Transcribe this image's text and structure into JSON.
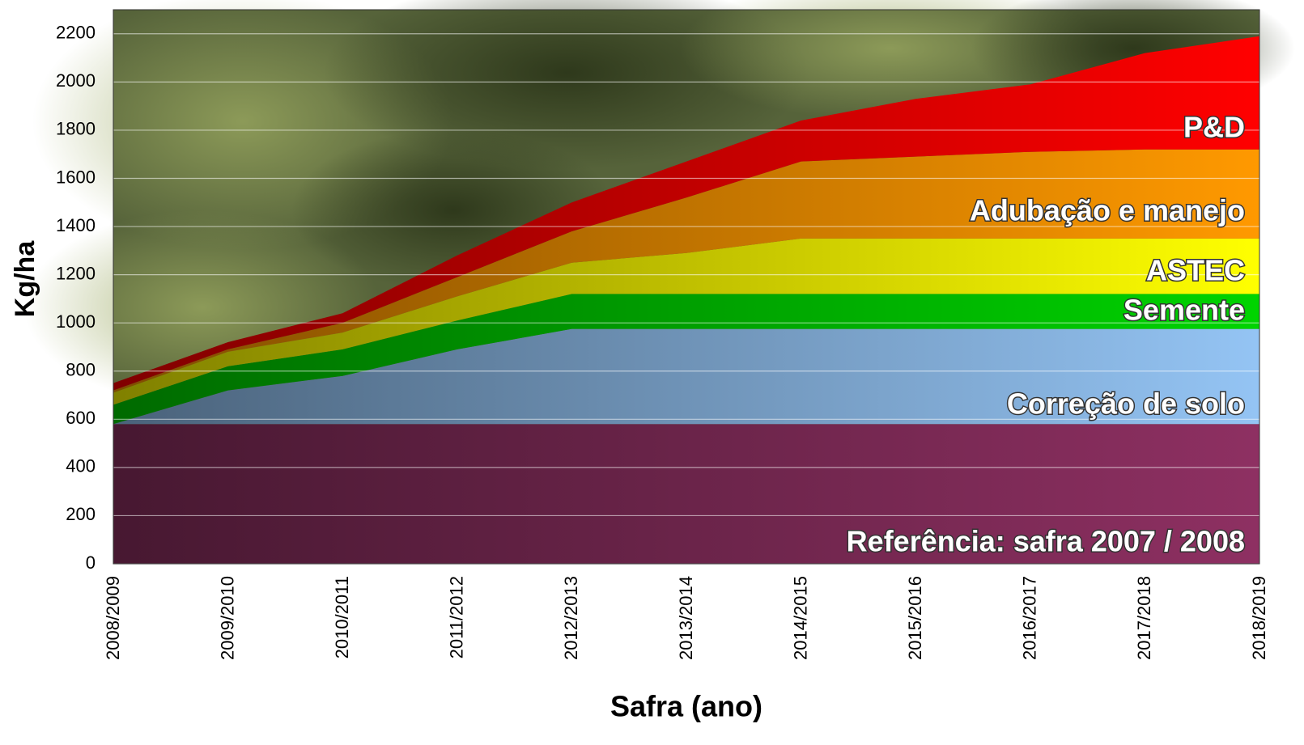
{
  "chart_data": {
    "type": "stacked-area",
    "x_label": "Safra (ano)",
    "y_label": "Kg/ha",
    "categories": [
      "2008/2009",
      "2009/2010",
      "2010/2011",
      "2011/2012",
      "2012/2013",
      "2013/2014",
      "2014/2015",
      "2015/2016",
      "2016/2017",
      "2017/2018",
      "2018/2019"
    ],
    "series": [
      {
        "name": "Referência: safra 2007 / 2008",
        "color": "#8e3062",
        "values": [
          580,
          580,
          580,
          580,
          580,
          580,
          580,
          580,
          580,
          580,
          580
        ]
      },
      {
        "name": "Correção de solo",
        "color": "#94c4f4",
        "values": [
          0,
          140,
          200,
          310,
          395,
          395,
          395,
          395,
          395,
          395,
          395
        ]
      },
      {
        "name": "Semente",
        "color": "#00d400",
        "values": [
          80,
          100,
          110,
          120,
          145,
          145,
          145,
          145,
          145,
          145,
          145
        ]
      },
      {
        "name": "ASTEC",
        "color": "#ffff00",
        "values": [
          50,
          60,
          70,
          100,
          130,
          170,
          230,
          230,
          230,
          230,
          230
        ]
      },
      {
        "name": "Adubação e manejo",
        "color": "#ff9900",
        "values": [
          10,
          10,
          40,
          80,
          130,
          230,
          320,
          340,
          360,
          370,
          370
        ]
      },
      {
        "name": "P&D",
        "color": "#ff0000",
        "values": [
          30,
          30,
          40,
          90,
          120,
          150,
          170,
          240,
          280,
          400,
          470
        ]
      }
    ],
    "ylim": [
      0,
      2300
    ],
    "yticks": [
      0,
      200,
      400,
      600,
      800,
      1000,
      1200,
      1400,
      1600,
      1800,
      2000,
      2200
    ],
    "grid": true
  }
}
